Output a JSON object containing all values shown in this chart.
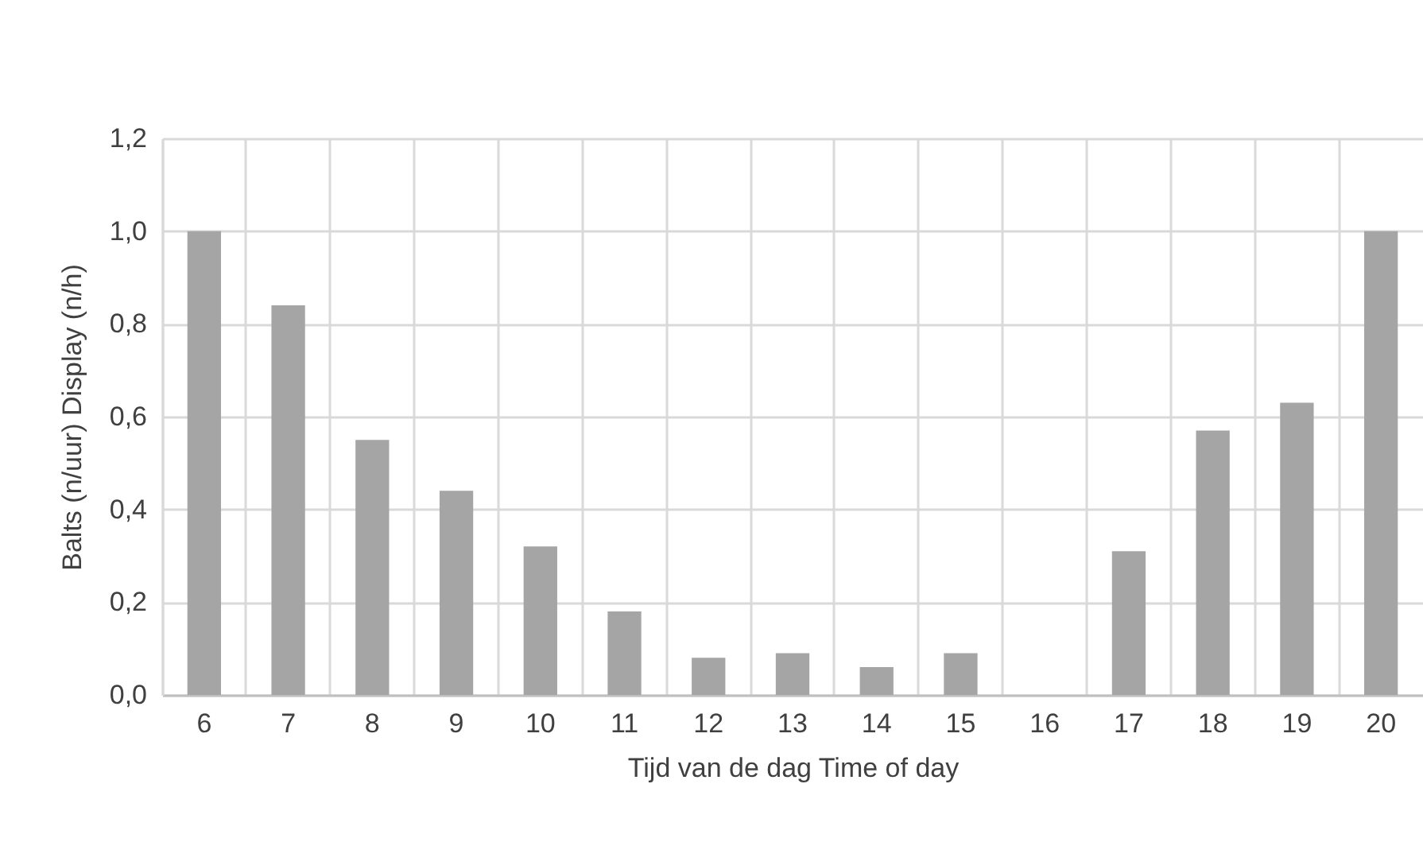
{
  "chart_data": {
    "type": "bar",
    "xlabel": "Tijd van de dag Time of day",
    "ylabel": "Balts (n/uur) Display (n/h)",
    "categories": [
      "6",
      "7",
      "8",
      "9",
      "10",
      "11",
      "12",
      "13",
      "14",
      "15",
      "16",
      "17",
      "18",
      "19",
      "20"
    ],
    "values": [
      1.0,
      0.84,
      0.55,
      0.44,
      0.32,
      0.18,
      0.08,
      0.09,
      0.06,
      0.09,
      0,
      0.31,
      0.57,
      0.63,
      1.0
    ],
    "color": "#a5a5a5",
    "ylim": [
      0,
      1.2
    ],
    "yticks": [
      {
        "value": 0,
        "label": "0,0"
      },
      {
        "value": 0.2,
        "label": "0,2"
      },
      {
        "value": 0.4,
        "label": "0,4"
      },
      {
        "value": 0.6,
        "label": "0,6"
      },
      {
        "value": 0.8,
        "label": "0,8"
      },
      {
        "value": 1.0,
        "label": "1,0"
      },
      {
        "value": 1.2,
        "label": "1,2"
      }
    ],
    "grid": true
  }
}
